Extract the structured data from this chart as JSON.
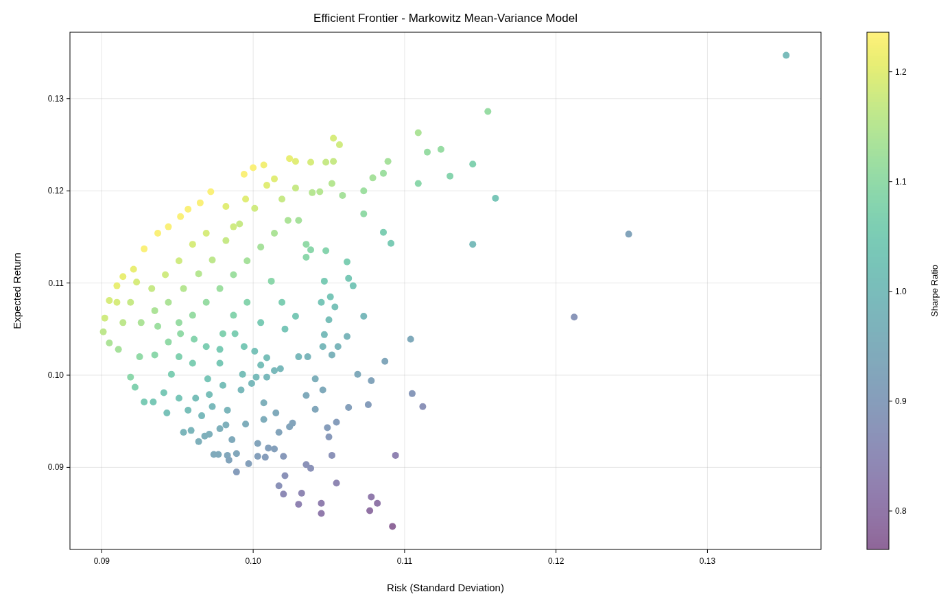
{
  "chart_data": {
    "type": "scatter",
    "title": "Efficient Frontier - Markowitz Mean-Variance Model",
    "xlabel": "Risk (Standard Deviation)",
    "ylabel": "Expected Return",
    "clabel": "Sharpe Ratio",
    "xlim": [
      0.0879,
      0.1375
    ],
    "ylim": [
      0.0811,
      0.1372
    ],
    "xticks": [
      {
        "value": 0.09,
        "label": "0.09"
      },
      {
        "value": 0.1,
        "label": "0.10"
      },
      {
        "value": 0.11,
        "label": "0.11"
      },
      {
        "value": 0.12,
        "label": "0.12"
      },
      {
        "value": 0.13,
        "label": "0.13"
      }
    ],
    "yticks": [
      {
        "value": 0.09,
        "label": "0.09"
      },
      {
        "value": 0.1,
        "label": "0.10"
      },
      {
        "value": 0.11,
        "label": "0.11"
      },
      {
        "value": 0.12,
        "label": "0.12"
      },
      {
        "value": 0.13,
        "label": "0.13"
      }
    ],
    "clim": [
      0.765,
      1.236
    ],
    "cticks": [
      {
        "value": 0.8,
        "label": "0.8"
      },
      {
        "value": 0.9,
        "label": "0.9"
      },
      {
        "value": 1.0,
        "label": "1.0"
      },
      {
        "value": 1.1,
        "label": "1.1"
      },
      {
        "value": 1.2,
        "label": "1.2"
      }
    ],
    "grid": true,
    "marker": "circle",
    "x": [
      0.1352,
      0.1155,
      0.1248,
      0.1212,
      0.116,
      0.1145,
      0.1145,
      0.1109,
      0.1115,
      0.1124,
      0.113,
      0.1109,
      0.1112,
      0.1105,
      0.1104,
      0.1094,
      0.1092,
      0.1082,
      0.1078,
      0.1077,
      0.1087,
      0.1091,
      0.1086,
      0.1089,
      0.1086,
      0.1079,
      0.1073,
      0.1073,
      0.1073,
      0.1078,
      0.1076,
      0.1069,
      0.1066,
      0.1063,
      0.1062,
      0.1063,
      0.1055,
      0.1045,
      0.1045,
      0.1053,
      0.1057,
      0.1053,
      0.1048,
      0.1059,
      0.1052,
      0.1044,
      0.1038,
      0.1039,
      0.1035,
      0.1048,
      0.1047,
      0.103,
      0.1028,
      0.1024,
      0.1028,
      0.1035,
      0.1038,
      0.1045,
      0.1051,
      0.1054,
      0.105,
      0.1047,
      0.1046,
      0.1052,
      0.1056,
      0.1062,
      0.1036,
      0.103,
      0.1035,
      0.1041,
      0.1046,
      0.1041,
      0.1049,
      0.105,
      0.1055,
      0.1052,
      0.1038,
      0.1035,
      0.1032,
      0.103,
      0.1021,
      0.1017,
      0.102,
      0.102,
      0.1014,
      0.1017,
      0.1024,
      0.1026,
      0.1015,
      0.1007,
      0.1007,
      0.1003,
      0.1008,
      0.101,
      0.0997,
      0.1003,
      0.0995,
      0.0989,
      0.0989,
      0.0986,
      0.0983,
      0.0984,
      0.0977,
      0.0974,
      0.0978,
      0.0983,
      0.0982,
      0.0971,
      0.0968,
      0.0964,
      0.0959,
      0.0954,
      0.0966,
      0.0957,
      0.0943,
      0.0934,
      0.0928,
      0.0941,
      0.0951,
      0.0962,
      0.0971,
      0.097,
      0.098,
      0.0992,
      0.0993,
      0.0999,
      0.1002,
      0.1005,
      0.1009,
      0.1014,
      0.1018,
      0.1009,
      0.1001,
      0.0994,
      0.0988,
      0.098,
      0.0978,
      0.0969,
      0.0961,
      0.0952,
      0.0944,
      0.0935,
      0.0925,
      0.0919,
      0.0922,
      0.0911,
      0.0905,
      0.0901,
      0.0902,
      0.0905,
      0.091,
      0.0914,
      0.0921,
      0.0928,
      0.0937,
      0.0944,
      0.0952,
      0.0957,
      0.0965,
      0.0972,
      0.0982,
      0.0994,
      0.1,
      0.1007,
      0.1009,
      0.1001,
      0.0991,
      0.0982,
      0.0973,
      0.0964,
      0.0954,
      0.0944,
      0.0935,
      0.0926,
      0.0919,
      0.0933,
      0.0942,
      0.0951,
      0.096,
      0.0969,
      0.0987,
      0.0995,
      0.1014,
      0.1019,
      0.1023,
      0.1014,
      0.1005,
      0.0996,
      0.0987,
      0.0978,
      0.0969,
      0.096,
      0.0951,
      0.1012,
      0.1019,
      0.1028,
      0.1021,
      0.1005,
      0.0996,
      0.0987,
      0.0978,
      0.096,
      0.0946,
      0.0973,
      0.0951,
      0.0937,
      0.0914,
      0.091,
      0.0923
    ],
    "values": [
      0.1347,
      0.1286,
      0.1153,
      0.1063,
      0.1192,
      0.1229,
      0.1142,
      0.1263,
      0.1242,
      0.1245,
      0.1216,
      0.1208,
      0.0966,
      0.098,
      0.1039,
      0.0913,
      0.0836,
      0.0861,
      0.0868,
      0.0853,
      0.1015,
      0.1143,
      0.1155,
      0.1232,
      0.1219,
      0.1214,
      0.12,
      0.1175,
      0.1064,
      0.0994,
      0.0968,
      0.1001,
      0.1097,
      0.1105,
      0.1123,
      0.0965,
      0.0883,
      0.0861,
      0.085,
      0.1257,
      0.125,
      0.1232,
      0.1231,
      0.1195,
      0.1208,
      0.1199,
      0.1231,
      0.1198,
      0.1142,
      0.1135,
      0.1102,
      0.1168,
      0.1203,
      0.1235,
      0.1232,
      0.1128,
      0.1136,
      0.1079,
      0.1085,
      0.1074,
      0.106,
      0.1044,
      0.1031,
      0.1022,
      0.1031,
      0.1042,
      0.102,
      0.102,
      0.0978,
      0.0996,
      0.0984,
      0.0963,
      0.0943,
      0.0933,
      0.0949,
      0.0913,
      0.0899,
      0.0903,
      0.0872,
      0.086,
      0.0891,
      0.088,
      0.0871,
      0.0912,
      0.092,
      0.0938,
      0.0944,
      0.0948,
      0.0959,
      0.0952,
      0.097,
      0.0912,
      0.0911,
      0.0921,
      0.0904,
      0.0926,
      0.0947,
      0.0915,
      0.0895,
      0.093,
      0.0913,
      0.0908,
      0.0914,
      0.0914,
      0.0942,
      0.0962,
      0.0946,
      0.0936,
      0.0934,
      0.0928,
      0.094,
      0.0938,
      0.0956,
      0.0962,
      0.0959,
      0.0971,
      0.0971,
      0.0981,
      0.0975,
      0.0975,
      0.0979,
      0.0996,
      0.0989,
      0.0984,
      0.1001,
      0.0991,
      0.0998,
      0.1011,
      0.0998,
      0.1005,
      0.1007,
      0.1019,
      0.1026,
      0.1031,
      0.1045,
      0.1045,
      0.1028,
      0.1031,
      0.1039,
      0.1045,
      0.1036,
      0.1022,
      0.102,
      0.0998,
      0.0987,
      0.1028,
      0.1035,
      0.1047,
      0.1062,
      0.1081,
      0.1097,
      0.1107,
      0.1115,
      0.1137,
      0.1154,
      0.1161,
      0.1172,
      0.118,
      0.1187,
      0.1199,
      0.1183,
      0.1218,
      0.1225,
      0.1228,
      0.1206,
      0.1181,
      0.1164,
      0.1146,
      0.1125,
      0.111,
      0.1094,
      0.1079,
      0.107,
      0.1057,
      0.1079,
      0.1094,
      0.1109,
      0.1124,
      0.1142,
      0.1154,
      0.1161,
      0.1191,
      0.1213,
      0.1191,
      0.1168,
      0.1154,
      0.1139,
      0.1124,
      0.1109,
      0.1094,
      0.1079,
      0.1065,
      0.1057,
      0.1102,
      0.1079,
      0.1064,
      0.105,
      0.1057,
      0.1079,
      0.1065,
      0.1013,
      0.1013,
      0.1001,
      0.0966,
      0.102,
      0.1053,
      0.1057,
      0.1079,
      0.1101
    ],
    "cvalues": [
      1.0,
      1.11,
      0.92,
      0.88,
      1.03,
      1.07,
      1.0,
      1.14,
      1.11,
      1.11,
      1.08,
      1.09,
      0.87,
      0.89,
      0.94,
      0.83,
      0.77,
      0.8,
      0.81,
      0.79,
      0.93,
      1.05,
      1.06,
      1.13,
      1.12,
      1.13,
      1.12,
      1.1,
      0.99,
      0.92,
      0.9,
      0.94,
      1.03,
      1.04,
      1.06,
      0.91,
      0.84,
      0.82,
      0.81,
      1.19,
      1.18,
      1.17,
      1.17,
      1.13,
      1.15,
      1.15,
      1.19,
      1.15,
      1.1,
      1.08,
      1.05,
      1.13,
      1.17,
      1.21,
      1.2,
      1.09,
      1.09,
      1.03,
      1.03,
      1.02,
      1.01,
      1.0,
      0.99,
      0.97,
      0.98,
      0.98,
      0.98,
      0.99,
      0.94,
      0.96,
      0.94,
      0.93,
      0.9,
      0.89,
      0.9,
      0.87,
      0.87,
      0.87,
      0.84,
      0.83,
      0.87,
      0.87,
      0.85,
      0.89,
      0.91,
      0.92,
      0.92,
      0.92,
      0.94,
      0.95,
      0.96,
      0.91,
      0.9,
      0.91,
      0.91,
      0.92,
      0.95,
      0.93,
      0.9,
      0.94,
      0.93,
      0.92,
      0.94,
      0.94,
      0.96,
      0.98,
      0.96,
      0.96,
      0.96,
      0.96,
      0.98,
      0.98,
      0.99,
      1.01,
      1.02,
      1.04,
      1.05,
      1.04,
      1.03,
      1.01,
      1.01,
      1.03,
      1.01,
      0.99,
      1.01,
      0.99,
      1.0,
      1.01,
      0.99,
      0.99,
      0.99,
      1.01,
      1.02,
      1.04,
      1.06,
      1.07,
      1.05,
      1.06,
      1.08,
      1.1,
      1.1,
      1.09,
      1.1,
      1.09,
      1.07,
      1.13,
      1.14,
      1.16,
      1.18,
      1.19,
      1.21,
      1.21,
      1.21,
      1.23,
      1.23,
      1.23,
      1.23,
      1.23,
      1.23,
      1.23,
      1.2,
      1.23,
      1.23,
      1.22,
      1.2,
      1.18,
      1.17,
      1.17,
      1.16,
      1.15,
      1.15,
      1.14,
      1.14,
      1.14,
      1.17,
      1.17,
      1.18,
      1.18,
      1.19,
      1.19,
      1.18,
      1.2,
      1.2,
      1.17,
      1.14,
      1.14,
      1.13,
      1.13,
      1.12,
      1.12,
      1.11,
      1.11,
      1.11,
      1.09,
      1.06,
      1.04,
      1.03,
      1.05,
      1.08,
      1.08,
      1.04,
      1.06,
      1.06,
      0.99,
      1.07,
      1.12,
      1.16,
      1.19,
      1.19
    ]
  }
}
